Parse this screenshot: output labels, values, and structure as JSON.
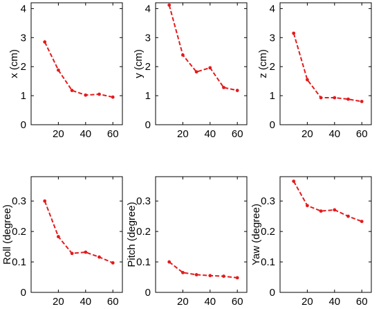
{
  "chart_data": [
    {
      "type": "line",
      "ylabel": "x (cm)",
      "x": [
        10,
        20,
        30,
        40,
        50,
        60
      ],
      "y": [
        2.85,
        1.88,
        1.18,
        1.02,
        1.05,
        0.95
      ],
      "xlim": [
        0,
        67
      ],
      "ylim": [
        0,
        4.2
      ],
      "xticks": [
        20,
        40,
        60
      ],
      "yticks": [
        0,
        1,
        2,
        3,
        4
      ],
      "color": "#e31a1c"
    },
    {
      "type": "line",
      "ylabel": "y (cm)",
      "x": [
        10,
        20,
        30,
        40,
        50,
        60
      ],
      "y": [
        4.12,
        2.4,
        1.82,
        1.96,
        1.28,
        1.18
      ],
      "xlim": [
        0,
        67
      ],
      "ylim": [
        0,
        4.2
      ],
      "xticks": [
        20,
        40,
        60
      ],
      "yticks": [
        0,
        1,
        2,
        3,
        4
      ],
      "color": "#e31a1c"
    },
    {
      "type": "line",
      "ylabel": "z (cm)",
      "x": [
        10,
        20,
        30,
        40,
        50,
        60
      ],
      "y": [
        3.15,
        1.55,
        0.93,
        0.93,
        0.88,
        0.8
      ],
      "xlim": [
        0,
        67
      ],
      "ylim": [
        0,
        4.2
      ],
      "xticks": [
        20,
        40,
        60
      ],
      "yticks": [
        0,
        1,
        2,
        3,
        4
      ],
      "color": "#e31a1c"
    },
    {
      "type": "line",
      "ylabel": "Roll (degree)",
      "x": [
        10,
        20,
        30,
        40,
        50,
        60
      ],
      "y": [
        0.3,
        0.183,
        0.128,
        0.132,
        0.116,
        0.097
      ],
      "xlim": [
        0,
        67
      ],
      "ylim": [
        0,
        0.38
      ],
      "xticks": [
        20,
        40,
        60
      ],
      "yticks": [
        0,
        0.1,
        0.2,
        0.3
      ],
      "color": "#e31a1c"
    },
    {
      "type": "line",
      "ylabel": "Pitch (degree)",
      "x": [
        10,
        20,
        30,
        40,
        50,
        60
      ],
      "y": [
        0.1,
        0.065,
        0.058,
        0.055,
        0.053,
        0.048
      ],
      "xlim": [
        0,
        67
      ],
      "ylim": [
        0,
        0.38
      ],
      "xticks": [
        20,
        40,
        60
      ],
      "yticks": [
        0,
        0.1,
        0.2,
        0.3
      ],
      "color": "#e31a1c"
    },
    {
      "type": "line",
      "ylabel": "Yaw (degree)",
      "x": [
        10,
        20,
        30,
        40,
        50,
        60
      ],
      "y": [
        0.365,
        0.285,
        0.267,
        0.271,
        0.25,
        0.233
      ],
      "xlim": [
        0,
        67
      ],
      "ylim": [
        0,
        0.38
      ],
      "xticks": [
        20,
        40,
        60
      ],
      "yticks": [
        0,
        0.1,
        0.2,
        0.3
      ],
      "color": "#e31a1c"
    }
  ]
}
